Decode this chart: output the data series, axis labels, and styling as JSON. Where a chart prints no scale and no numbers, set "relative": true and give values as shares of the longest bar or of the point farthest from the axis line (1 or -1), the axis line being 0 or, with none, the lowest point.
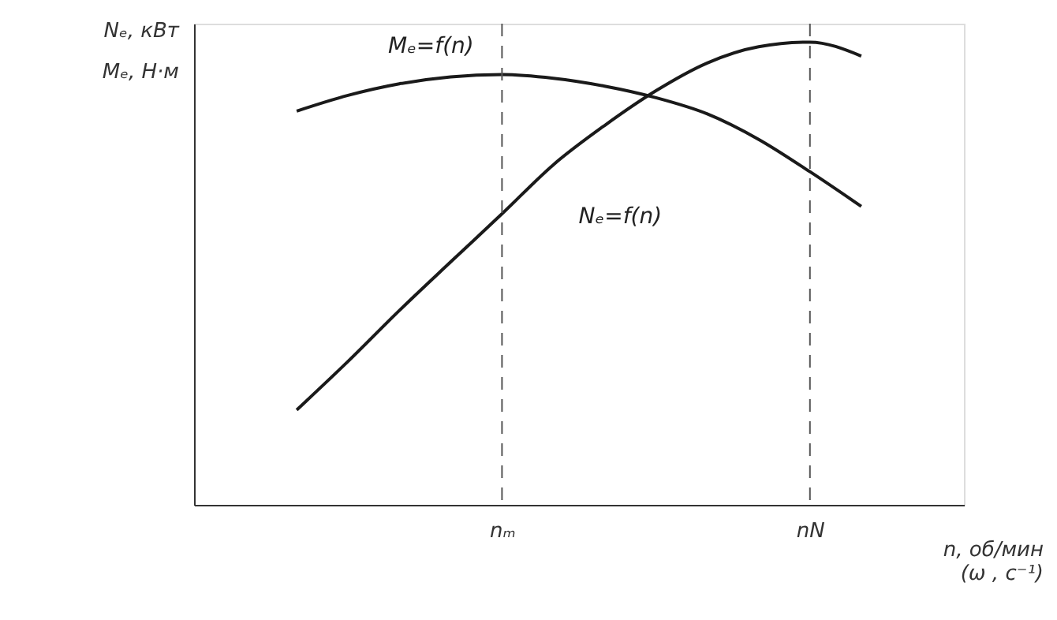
{
  "chart_data": {
    "type": "line",
    "relative": true,
    "ylabel": "Nₑ, кВт\nMₑ, Н·м",
    "xlabel": "n, об/мин\n(ω , с⁻¹)",
    "categories": [
      null,
      null,
      null,
      null,
      null,
      null,
      "nₘ",
      null,
      null,
      null,
      null,
      null,
      "nN",
      null,
      null,
      null
    ],
    "series": [
      {
        "name": "Mₑ=f(n)",
        "color": "#1a1a1a",
        "values": [
          null,
          null,
          0.851,
          0.885,
          0.91,
          0.925,
          0.93,
          0.922,
          0.905,
          0.88,
          0.845,
          0.79,
          0.72,
          0.645,
          null,
          null
        ]
      },
      {
        "name": "Nₑ=f(n)",
        "color": "#1a1a1a",
        "values": [
          null,
          null,
          0.205,
          0.31,
          0.42,
          0.525,
          0.629,
          0.735,
          0.82,
          0.895,
          0.955,
          0.99,
          1.0,
          0.97,
          null,
          null
        ]
      }
    ],
    "ref_lines": [
      {
        "axis": "x",
        "value": "nₘ",
        "line_style": "dashed",
        "color": "#555555"
      },
      {
        "axis": "x",
        "value": "nN",
        "line_style": "dashed",
        "color": "#555555"
      }
    ],
    "grid": false,
    "marker": "none",
    "line_style": "solid"
  }
}
